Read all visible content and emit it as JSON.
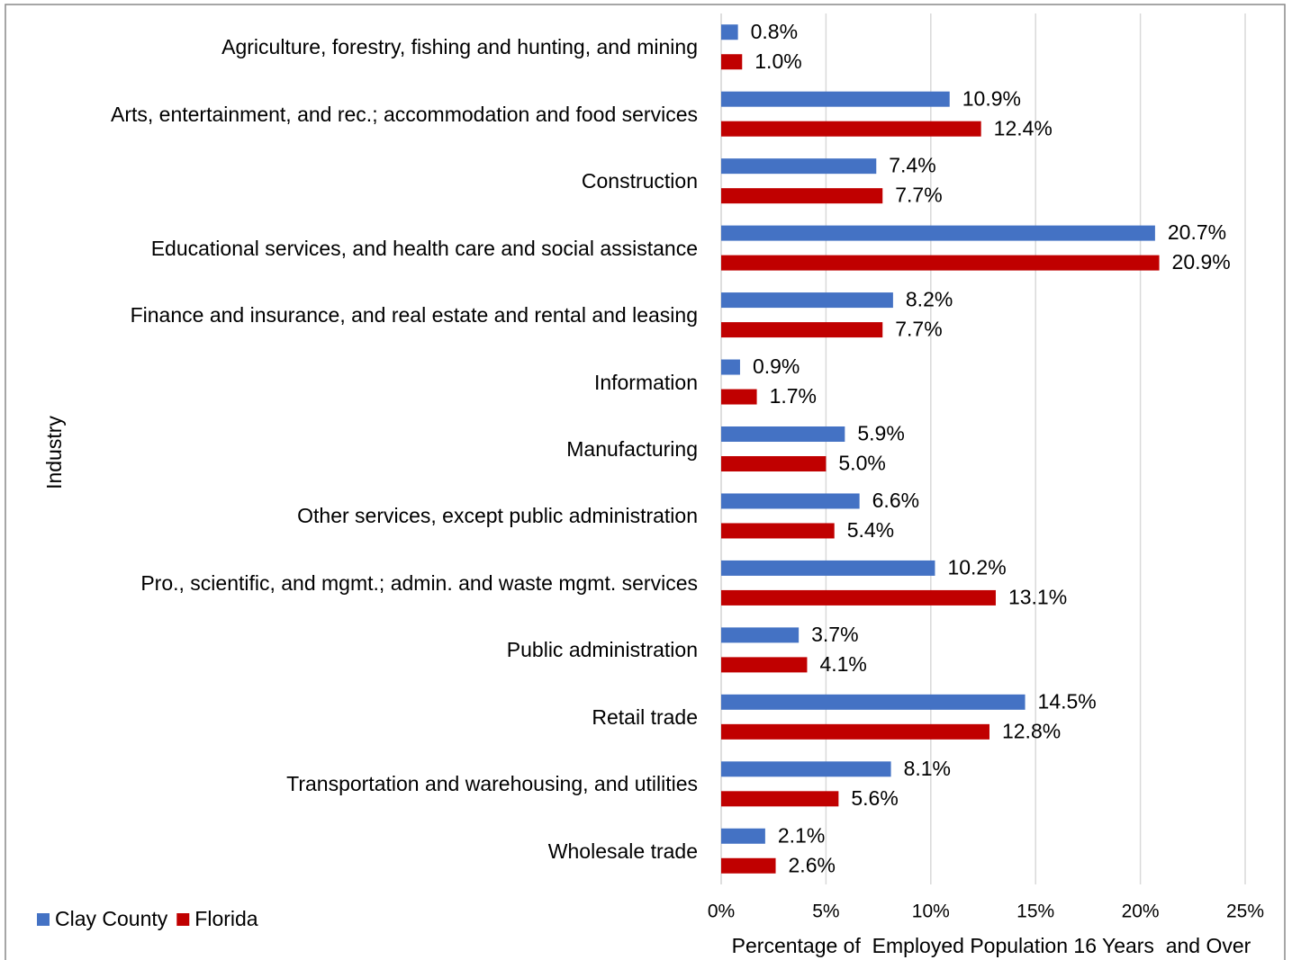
{
  "chart_data": {
    "type": "bar",
    "orientation": "horizontal",
    "y_axis_label": "Industry",
    "x_axis_label": "Percentage of  Employed Population 16 Years  and Over",
    "categories": [
      "Agriculture, forestry, fishing and hunting, and mining",
      "Arts, entertainment, and rec.; accommodation and food services",
      "Construction",
      "Educational services, and health care and social assistance",
      "Finance and insurance, and real estate and rental and leasing",
      "Information",
      "Manufacturing",
      "Other services, except public administration",
      "Pro., scientific, and mgmt.; admin. and waste mgmt. services",
      "Public administration",
      "Retail trade",
      "Transportation and warehousing, and utilities",
      "Wholesale trade"
    ],
    "series": [
      {
        "name": "Clay County",
        "color": "#4472c4",
        "values": [
          0.8,
          10.9,
          7.4,
          20.7,
          8.2,
          0.9,
          5.9,
          6.6,
          10.2,
          3.7,
          14.5,
          8.1,
          2.1
        ],
        "value_labels": [
          "0.8%",
          "10.9%",
          "7.4%",
          "20.7%",
          "8.2%",
          "0.9%",
          "5.9%",
          "6.6%",
          "10.2%",
          "3.7%",
          "14.5%",
          "8.1%",
          "2.1%"
        ]
      },
      {
        "name": "Florida",
        "color": "#c00000",
        "values": [
          1.0,
          12.4,
          7.7,
          20.9,
          7.7,
          1.7,
          5.0,
          5.4,
          13.1,
          4.1,
          12.8,
          5.6,
          2.6
        ],
        "value_labels": [
          "1.0%",
          "12.4%",
          "7.7%",
          "20.9%",
          "7.7%",
          "1.7%",
          "5.0%",
          "5.4%",
          "13.1%",
          "4.1%",
          "12.8%",
          "5.6%",
          "2.6%"
        ]
      }
    ],
    "xlim": [
      0,
      25
    ],
    "xticks": [
      {
        "value": 0,
        "label": "0%"
      },
      {
        "value": 5,
        "label": "5%"
      },
      {
        "value": 10,
        "label": "10%"
      },
      {
        "value": 15,
        "label": "15%"
      },
      {
        "value": 20,
        "label": "20%"
      },
      {
        "value": 25,
        "label": "25%"
      }
    ],
    "grid": true,
    "legend": "bottom-left"
  }
}
